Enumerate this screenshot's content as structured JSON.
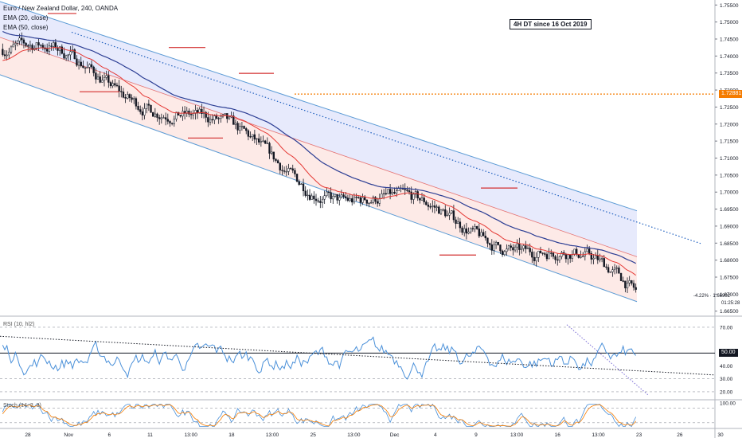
{
  "colors": {
    "up": "#131722",
    "down": "#131722",
    "ema20": "#e53935",
    "ema50": "#2c3e94",
    "channel": "#5b9bd5",
    "channel_fill_upper": "#e3e6fb",
    "channel_fill_lower": "#fde6e3",
    "trend": "#1e5fbf",
    "rsi": "#4a90d9",
    "level": "#f57c00",
    "stoch_k": "#4a90d9",
    "stoch_d": "#f57c00"
  },
  "legend": {
    "title": "Euro / New Zealand Dollar, 240, OANDA",
    "ema20": "EMA (20, close)",
    "ema50": "EMA (50, close)"
  },
  "annotation": "4H DT since 16 Oct 2019",
  "rsi_label": "RSI (10, hl2)",
  "stoch_label": "Stoch (14, 3, 3)",
  "price_badge": "1.72881",
  "current_readout": "-4.22% · 1.66902",
  "countdown": "01:25:28",
  "rsi_level_badge": "50.00",
  "chart_data": {
    "type": "candlestick",
    "x_ticks": [
      "28",
      "Nov",
      "6",
      "11",
      "13:00",
      "18",
      "13:00",
      "25",
      "13:00",
      "Dec",
      "4",
      "9",
      "13:00",
      "16",
      "13:00",
      "23",
      "26",
      "30"
    ],
    "y_ticks": [
      "1.75500",
      "1.75000",
      "1.74500",
      "1.74000",
      "1.73500",
      "1.73000",
      "1.72500",
      "1.72000",
      "1.71500",
      "1.71000",
      "1.70500",
      "1.70000",
      "1.69500",
      "1.69000",
      "1.68500",
      "1.68000",
      "1.67500",
      "1.67000",
      "1.66500"
    ],
    "ylim": [
      1.664,
      1.756
    ],
    "rsi_ticks": [
      "70.00",
      "50.00",
      "40.00",
      "30.00",
      "20.00"
    ],
    "rsi_ylim": [
      15,
      78
    ],
    "stoch_ticks": [
      "100.00"
    ],
    "horizontal_level": 1.72881,
    "series": [
      {
        "name": "EMA (20, close)",
        "start": 1.7385,
        "end": 1.676
      },
      {
        "name": "EMA (50, close)",
        "start": 1.7475,
        "end": 1.685
      }
    ],
    "channel": {
      "upper": [
        [
          0,
          1.756
        ],
        [
          800,
          1.6945
        ]
      ],
      "lower": [
        [
          0,
          1.7345
        ],
        [
          800,
          1.6678
        ]
      ]
    },
    "channel_mid": [
      [
        0,
        1.7455
      ],
      [
        800,
        1.681
      ]
    ],
    "trend_line": [
      [
        90,
        1.747
      ],
      [
        880,
        1.6849
      ]
    ],
    "candles_count": 300,
    "close_start": 1.742,
    "close_end": 1.669
  }
}
